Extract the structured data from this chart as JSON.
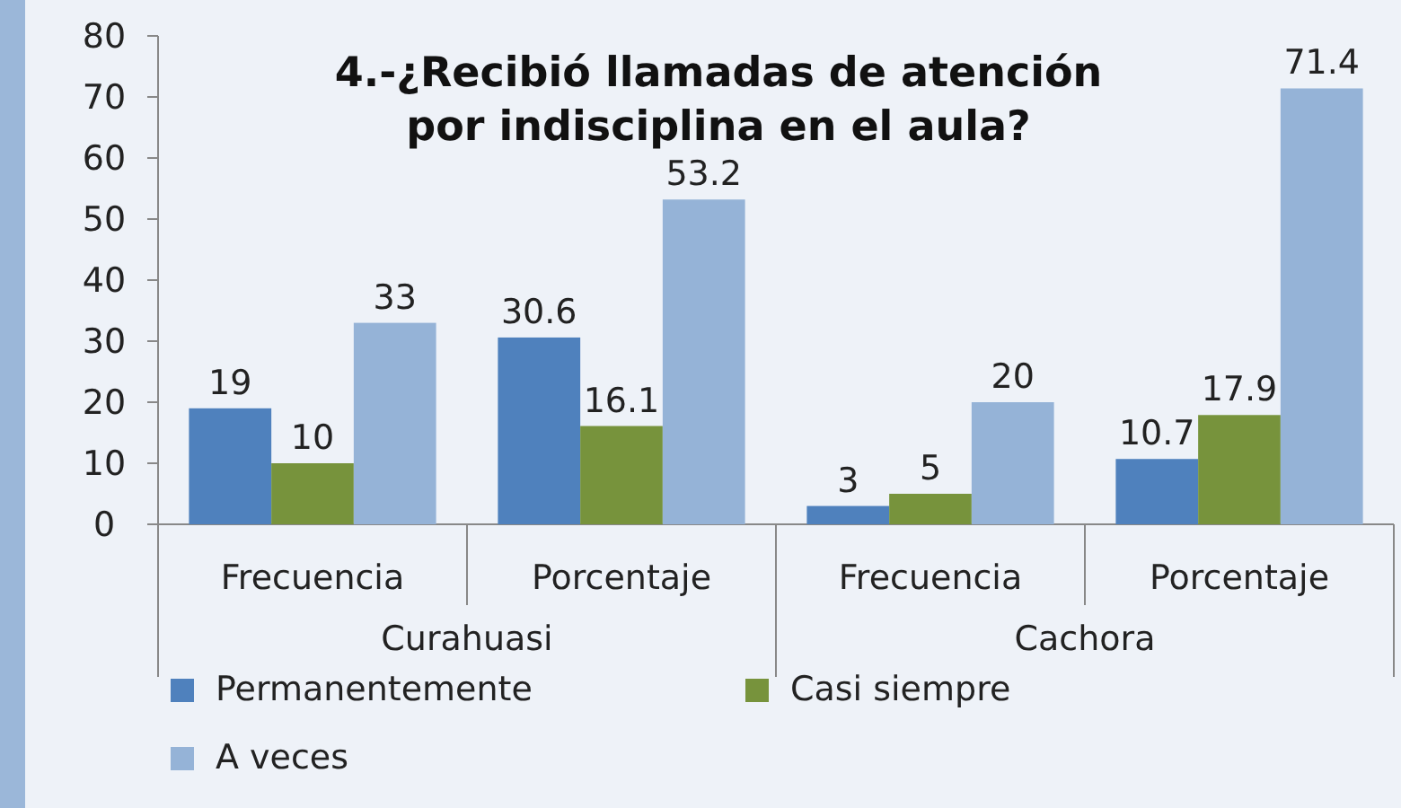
{
  "chart_data": {
    "type": "bar",
    "title": "4.-¿Recibió llamadas de atención\npor indisciplina en el aula?",
    "categories": [
      "Frecuencia",
      "Porcentaje",
      "Frecuencia",
      "Porcentaje"
    ],
    "annotations": [
      "Curahuasi",
      "Cachora"
    ],
    "series": [
      {
        "name": "Permanentemente",
        "color": "#4f81bd",
        "values": [
          19,
          30.6,
          3,
          10.7
        ]
      },
      {
        "name": "Casi siempre",
        "color": "#77933c",
        "values": [
          10,
          16.1,
          5,
          17.9
        ]
      },
      {
        "name": "A veces",
        "color": "#95b3d7",
        "values": [
          33,
          53.2,
          20,
          71.4
        ]
      }
    ],
    "ylim": [
      0,
      80
    ],
    "yticks": [
      0,
      10,
      20,
      30,
      40,
      50,
      60,
      70,
      80
    ],
    "data_labels": true,
    "legend": "bottom"
  }
}
